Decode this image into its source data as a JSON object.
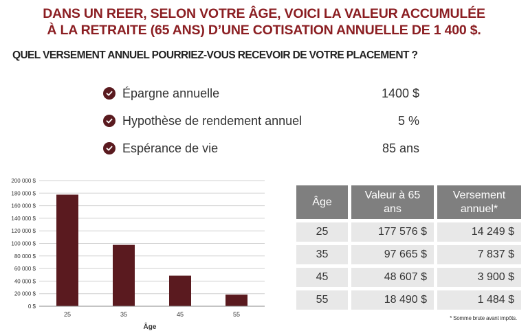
{
  "headline": {
    "line1": "DANS UN REER, SELON VOTRE ÂGE, VOICI LA VALEUR ACCUMULÉE",
    "line2": "À LA RETRAITE (65 ANS) D’UNE COTISATION ANNUELLE DE 1 400 $."
  },
  "subheadline": "QUEL VERSEMENT ANNUEL POURRIEZ-VOUS RECEVOIR DE VOTRE PLACEMENT ?",
  "assumptions": [
    {
      "label": "Épargne annuelle",
      "value": "1400 $"
    },
    {
      "label": "Hypothèse de rendement annuel",
      "value": "5 %"
    },
    {
      "label": "Espérance de vie",
      "value": "85 ans"
    }
  ],
  "colors": {
    "headline": "#8b1e22",
    "bar": "#5a1a1f",
    "table_header": "#7f7f7f",
    "table_cell": "#e8e8e8",
    "gridline": "#d0d0d0"
  },
  "chart_data": {
    "type": "bar",
    "categories": [
      "25",
      "35",
      "45",
      "55"
    ],
    "values": [
      177576,
      97665,
      48607,
      18490
    ],
    "title": "",
    "xlabel": "Âge",
    "ylabel": "",
    "ylim": [
      0,
      200000
    ],
    "yticks": [
      {
        "value": 0,
        "label": "0 $"
      },
      {
        "value": 20000,
        "label": "20 000 $"
      },
      {
        "value": 40000,
        "label": "40 000 $"
      },
      {
        "value": 60000,
        "label": "60 000 $"
      },
      {
        "value": 80000,
        "label": "80 000 $"
      },
      {
        "value": 100000,
        "label": "100 000 $"
      },
      {
        "value": 120000,
        "label": "120 000 $"
      },
      {
        "value": 140000,
        "label": "140 000 $"
      },
      {
        "value": 160000,
        "label": "160 000 $"
      },
      {
        "value": 180000,
        "label": "180 000 $"
      },
      {
        "value": 200000,
        "label": "200 000 $"
      }
    ],
    "grid": true,
    "legend": "none"
  },
  "table": {
    "headers": [
      "Âge",
      "Valeur à 65 ans",
      "Versement annuel*"
    ],
    "rows": [
      {
        "age": "25",
        "value": "177 576 $",
        "payment": "14 249 $"
      },
      {
        "age": "35",
        "value": "97 665 $",
        "payment": "7 837 $"
      },
      {
        "age": "45",
        "value": "48 607 $",
        "payment": "3 900 $"
      },
      {
        "age": "55",
        "value": "18 490 $",
        "payment": "1 484 $"
      }
    ]
  },
  "footnote": "* Somme brute avant impôts."
}
